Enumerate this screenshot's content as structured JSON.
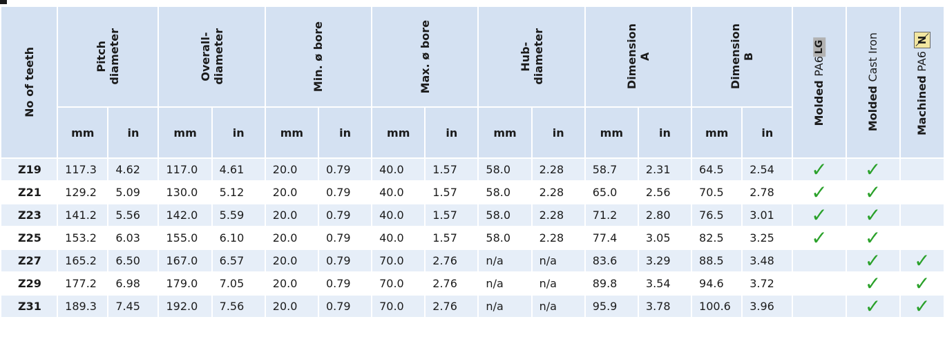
{
  "table": {
    "headers": {
      "teeth": "No of teeth",
      "pitch": "Pitch\ndiameter",
      "overall": "Overall-\ndiameter",
      "min_bore": "Min. ø bore",
      "max_bore": "Max. ø bore",
      "hub": "Hub-\ndiameter",
      "dim_a": "Dimension\nA",
      "dim_b": "Dimension\nB",
      "mat1_bold": "Molded",
      "mat1_rest": "PA6",
      "mat1_badge": "LG",
      "mat2_bold": "Molded",
      "mat2_rest": "Cast Iron",
      "mat3_bold": "Machined",
      "mat3_rest": "PA6",
      "mat3_badge": "N"
    },
    "units": [
      "mm",
      "in",
      "mm",
      "in",
      "mm",
      "in",
      "mm",
      "in",
      "mm",
      "in",
      "mm",
      "in",
      "mm",
      "in"
    ],
    "check_symbol": "✓",
    "rows": [
      {
        "teeth": "Z19",
        "values": [
          "117.3",
          "4.62",
          "117.0",
          "4.61",
          "20.0",
          "0.79",
          "40.0",
          "1.57",
          "58.0",
          "2.28",
          "58.7",
          "2.31",
          "64.5",
          "2.54"
        ],
        "marks": [
          true,
          true,
          false
        ]
      },
      {
        "teeth": "Z21",
        "values": [
          "129.2",
          "5.09",
          "130.0",
          "5.12",
          "20.0",
          "0.79",
          "40.0",
          "1.57",
          "58.0",
          "2.28",
          "65.0",
          "2.56",
          "70.5",
          "2.78"
        ],
        "marks": [
          true,
          true,
          false
        ]
      },
      {
        "teeth": "Z23",
        "values": [
          "141.2",
          "5.56",
          "142.0",
          "5.59",
          "20.0",
          "0.79",
          "40.0",
          "1.57",
          "58.0",
          "2.28",
          "71.2",
          "2.80",
          "76.5",
          "3.01"
        ],
        "marks": [
          true,
          true,
          false
        ]
      },
      {
        "teeth": "Z25",
        "values": [
          "153.2",
          "6.03",
          "155.0",
          "6.10",
          "20.0",
          "0.79",
          "40.0",
          "1.57",
          "58.0",
          "2.28",
          "77.4",
          "3.05",
          "82.5",
          "3.25"
        ],
        "marks": [
          true,
          true,
          false
        ]
      },
      {
        "teeth": "Z27",
        "values": [
          "165.2",
          "6.50",
          "167.0",
          "6.57",
          "20.0",
          "0.79",
          "70.0",
          "2.76",
          "n/a",
          "n/a",
          "83.6",
          "3.29",
          "88.5",
          "3.48"
        ],
        "marks": [
          false,
          true,
          true
        ]
      },
      {
        "teeth": "Z29",
        "values": [
          "177.2",
          "6.98",
          "179.0",
          "7.05",
          "20.0",
          "0.79",
          "70.0",
          "2.76",
          "n/a",
          "n/a",
          "89.8",
          "3.54",
          "94.6",
          "3.72"
        ],
        "marks": [
          false,
          true,
          true
        ]
      },
      {
        "teeth": "Z31",
        "values": [
          "189.3",
          "7.45",
          "192.0",
          "7.56",
          "20.0",
          "0.79",
          "70.0",
          "2.76",
          "n/a",
          "n/a",
          "95.9",
          "3.78",
          "100.6",
          "3.96"
        ],
        "marks": [
          false,
          true,
          true
        ]
      }
    ]
  },
  "colors": {
    "header_bg": "#d4e1f2",
    "row_alt_bg": "#e6eef8",
    "check": "#2aa12a",
    "badge_bg": "#b2b2b2",
    "text": "#1b1b1b"
  }
}
